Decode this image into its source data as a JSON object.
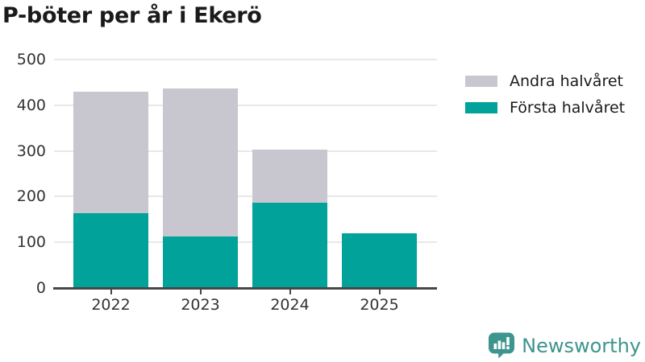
{
  "title": "P-böter per år i Ekerö",
  "colors": {
    "first_half": "#00a29a",
    "second_half": "#c8c6cf",
    "grid": "#e8e7ea",
    "axis": "#474747",
    "tick_text": "#333333",
    "title_text": "#1a1a1a",
    "logo": "#3e948e"
  },
  "chart_data": {
    "type": "bar",
    "stacked": true,
    "title": "P-böter per år i Ekerö",
    "categories": [
      "2022",
      "2023",
      "2024",
      "2025"
    ],
    "series": [
      {
        "name": "Första halvåret",
        "color_key": "first_half",
        "values": [
          163,
          112,
          186,
          120
        ]
      },
      {
        "name": "Andra halvåret",
        "color_key": "second_half",
        "values": [
          267,
          324,
          116,
          0
        ]
      }
    ],
    "totals": [
      430,
      436,
      302,
      120
    ],
    "xlabel": "",
    "ylabel": "",
    "ylim": [
      0,
      500
    ],
    "yticks": [
      0,
      100,
      200,
      300,
      400,
      500
    ],
    "grid": true,
    "legend_position": "top-right"
  },
  "legend": {
    "items": [
      {
        "label": "Andra halvåret",
        "color_key": "second_half"
      },
      {
        "label": "Första halvåret",
        "color_key": "first_half"
      }
    ]
  },
  "branding": {
    "logo_text": "Newsworthy",
    "logo_icon": "bar-chart-speech-bubble-icon"
  }
}
